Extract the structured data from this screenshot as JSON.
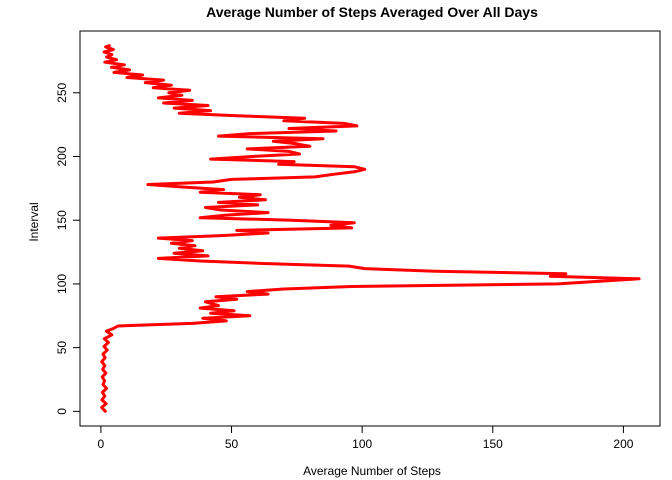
{
  "chart_data": {
    "type": "line",
    "title": "Average Number of Steps Averaged Over All Days",
    "xlabel": "Average Number of Steps",
    "ylabel": "Interval",
    "xlim": [
      -8,
      214
    ],
    "ylim": [
      -11.5,
      298.5
    ],
    "xticks": [
      0,
      50,
      100,
      150,
      200
    ],
    "yticks": [
      0,
      50,
      100,
      150,
      200,
      250
    ],
    "series": [
      {
        "color": "#ff0000",
        "points": [
          [
            1.7,
            0
          ],
          [
            0.3,
            3
          ],
          [
            2.0,
            6
          ],
          [
            0.4,
            9
          ],
          [
            1.5,
            12
          ],
          [
            0.6,
            15
          ],
          [
            2.2,
            18
          ],
          [
            0.8,
            21
          ],
          [
            1.4,
            24
          ],
          [
            0.5,
            27
          ],
          [
            1.9,
            30
          ],
          [
            0.7,
            33
          ],
          [
            1.5,
            36
          ],
          [
            0.3,
            39
          ],
          [
            1.6,
            42
          ],
          [
            0.8,
            45
          ],
          [
            2.4,
            48
          ],
          [
            1.2,
            51
          ],
          [
            2.9,
            54
          ],
          [
            1.3,
            57
          ],
          [
            4.2,
            60
          ],
          [
            2.1,
            63
          ],
          [
            4.8,
            65
          ],
          [
            6.5,
            67
          ],
          [
            35,
            69
          ],
          [
            48,
            71
          ],
          [
            39,
            73
          ],
          [
            57,
            75
          ],
          [
            42,
            77
          ],
          [
            51,
            79
          ],
          [
            38,
            81
          ],
          [
            45,
            83
          ],
          [
            40,
            86
          ],
          [
            52,
            88
          ],
          [
            44,
            90
          ],
          [
            64,
            92
          ],
          [
            56,
            94
          ],
          [
            70,
            96
          ],
          [
            96,
            98
          ],
          [
            175,
            100
          ],
          [
            190,
            102
          ],
          [
            206,
            104
          ],
          [
            172,
            106
          ],
          [
            178,
            108
          ],
          [
            128,
            110
          ],
          [
            101,
            112
          ],
          [
            95,
            114
          ],
          [
            62,
            116
          ],
          [
            38,
            118
          ],
          [
            22,
            120
          ],
          [
            41,
            122
          ],
          [
            28,
            124
          ],
          [
            39,
            126
          ],
          [
            30,
            128
          ],
          [
            36,
            130
          ],
          [
            27,
            132
          ],
          [
            35,
            134
          ],
          [
            22,
            136
          ],
          [
            47,
            138
          ],
          [
            64,
            140
          ],
          [
            52,
            142
          ],
          [
            96,
            144
          ],
          [
            88,
            146
          ],
          [
            97,
            148
          ],
          [
            73,
            150
          ],
          [
            38,
            152
          ],
          [
            48,
            154
          ],
          [
            64,
            156
          ],
          [
            46,
            158
          ],
          [
            40,
            160
          ],
          [
            60,
            162
          ],
          [
            45,
            164
          ],
          [
            63,
            166
          ],
          [
            53,
            168
          ],
          [
            61,
            170
          ],
          [
            38,
            172
          ],
          [
            47,
            174
          ],
          [
            32,
            176
          ],
          [
            18,
            178
          ],
          [
            43,
            180
          ],
          [
            50,
            182
          ],
          [
            82,
            184
          ],
          [
            89,
            186
          ],
          [
            97,
            188
          ],
          [
            101,
            190
          ],
          [
            97,
            192
          ],
          [
            68,
            194
          ],
          [
            74,
            196
          ],
          [
            42,
            198
          ],
          [
            58,
            200
          ],
          [
            76,
            202
          ],
          [
            72,
            204
          ],
          [
            56,
            206
          ],
          [
            80,
            208
          ],
          [
            75,
            210
          ],
          [
            66,
            212
          ],
          [
            85,
            214
          ],
          [
            45,
            216
          ],
          [
            57,
            218
          ],
          [
            90,
            220
          ],
          [
            72,
            222
          ],
          [
            98,
            224
          ],
          [
            93,
            226
          ],
          [
            70,
            228
          ],
          [
            78,
            230
          ],
          [
            52,
            232
          ],
          [
            30,
            234
          ],
          [
            42,
            236
          ],
          [
            28,
            238
          ],
          [
            41,
            240
          ],
          [
            24,
            242
          ],
          [
            35,
            244
          ],
          [
            22,
            246
          ],
          [
            31,
            248
          ],
          [
            26,
            250
          ],
          [
            34,
            252
          ],
          [
            20,
            254
          ],
          [
            27,
            256
          ],
          [
            17,
            258
          ],
          [
            24,
            260
          ],
          [
            10,
            262
          ],
          [
            16,
            264
          ],
          [
            5,
            266
          ],
          [
            11,
            268
          ],
          [
            4,
            270
          ],
          [
            9,
            272
          ],
          [
            1.5,
            274
          ],
          [
            6,
            276
          ],
          [
            2.2,
            278
          ],
          [
            4.2,
            280
          ],
          [
            1.2,
            282
          ],
          [
            4.8,
            284
          ],
          [
            1.8,
            286
          ],
          [
            3.2,
            287
          ]
        ]
      }
    ]
  }
}
